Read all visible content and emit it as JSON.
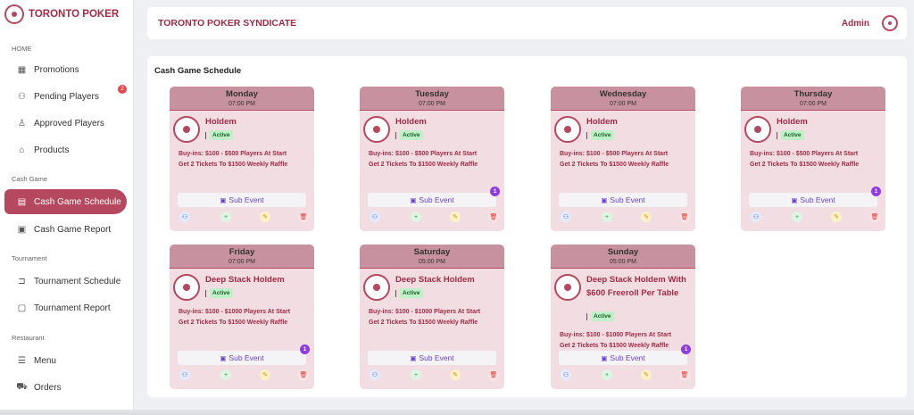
{
  "brand": {
    "name": "TORONTO POKER"
  },
  "sidebar": {
    "sections": {
      "home": "HOME",
      "cash_game": "Cash Game",
      "tournament": "Tournament",
      "restaurant": "Restaurant"
    },
    "items": [
      {
        "label": "Promotions",
        "icon": "grid-icon"
      },
      {
        "label": "Pending Players",
        "icon": "users-icon",
        "badge": "2"
      },
      {
        "label": "Approved Players",
        "icon": "user-check-icon"
      },
      {
        "label": "Products",
        "icon": "store-icon"
      },
      {
        "label": "Cash Game Schedule",
        "icon": "calendar-icon",
        "active": true
      },
      {
        "label": "Cash Game Report",
        "icon": "report-icon"
      },
      {
        "label": "Tournament Schedule",
        "icon": "bracket-icon"
      },
      {
        "label": "Tournament Report",
        "icon": "clipboard-icon"
      },
      {
        "label": "Menu",
        "icon": "menu-icon"
      },
      {
        "label": "Orders",
        "icon": "cart-icon"
      }
    ]
  },
  "header": {
    "title": "TORONTO POKER SYNDICATE",
    "user": "Admin"
  },
  "main": {
    "title": "Cash Game Schedule",
    "sub_event_label": "Sub Event",
    "cards": [
      {
        "day": "Monday",
        "time": "07:00 PM",
        "game": "Holdem",
        "status": "Active",
        "desc1": "Buy-ins: $100 - $500 Players At Start",
        "desc2": "Get 2 Tickets To $1500 Weekly Raffle",
        "sub_count": ""
      },
      {
        "day": "Tuesday",
        "time": "07:00 PM",
        "game": "Holdem",
        "status": "Active",
        "desc1": "Buy-ins: $100 - $500 Players At Start",
        "desc2": "Get 2 Tickets To $1500 Weekly Raffle",
        "sub_count": "1"
      },
      {
        "day": "Wednesday",
        "time": "07:00 PM",
        "game": "Holdem",
        "status": "Active",
        "desc1": "Buy-ins: $100 - $500 Players At Start",
        "desc2": "Get 2 Tickets To $1500 Weekly Raffle",
        "sub_count": ""
      },
      {
        "day": "Thursday",
        "time": "07:00 PM",
        "game": "Holdem",
        "status": "Active",
        "desc1": "Buy-ins: $100 - $500 Players At Start",
        "desc2": "Get 2 Tickets To $1500 Weekly Raffle",
        "sub_count": "1"
      },
      {
        "day": "Friday",
        "time": "07:00 PM",
        "game": "Deep Stack Holdem",
        "status": "Active",
        "desc1": "Buy-ins: $100 - $1000 Players At Start",
        "desc2": "Get 2 Tickets To $1500 Weekly Raffle",
        "sub_count": "1"
      },
      {
        "day": "Saturday",
        "time": "05:00 PM",
        "game": "Deep Stack Holdem",
        "status": "Active",
        "desc1": "Buy-ins: $100 - $1000 Players At Start",
        "desc2": "Get 2 Tickets To $1500 Weekly Raffle",
        "sub_count": ""
      },
      {
        "day": "Sunday",
        "time": "05:00 PM",
        "game": "Deep Stack Holdem With $600 Freeroll Per Table",
        "status": "Active",
        "desc1": "Buy-ins: $100 - $1000 Players At Start",
        "desc2": "Get 2 Tickets To $1500 Weekly Raffle",
        "sub_count": "1"
      }
    ]
  },
  "colors": {
    "brand": "#a32b46",
    "active_nav": "#b5475f",
    "card_bg": "#f1dde2",
    "card_head": "#c8919f",
    "sub_event_text": "#6a3fd0",
    "active_pill": "#bff0c8"
  }
}
